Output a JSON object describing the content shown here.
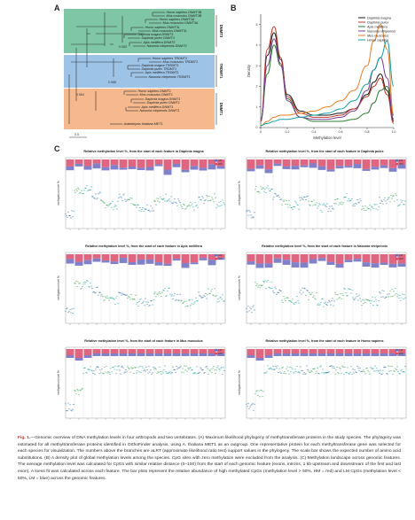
{
  "panels": {
    "a": "A",
    "b": "B",
    "c": "C"
  },
  "tree": {
    "groups": [
      {
        "label": "DNMT3",
        "color": "#7ec6a6"
      },
      {
        "label": "TRDMT1",
        "color": "#9dc3e6"
      },
      {
        "label": "DNMT1",
        "color": "#f6b98d"
      }
    ],
    "leaves": [
      "Homo sapiens DNMT3B",
      "Mus musculus DNMT3B",
      "Homo sapiens DNMT3A",
      "Mus musculus DNMT3A",
      "Homo sapiens DNMT3L",
      "Mus musculus DNMT3L",
      "Daphnia magna DNMT3",
      "Daphnia pulex DNMT3",
      "Apis mellifera DNMT3",
      "Nasonia vitripennis DNMT3",
      "Homo sapiens TRDMT1",
      "Mus musculus TRDMT1",
      "Daphnia magna TRDMT1",
      "Daphnia pulex TRDMT1",
      "Apis mellifera TRDMT1",
      "Nasonia vitripennis TRDMT1",
      "Homo sapiens DNMT1",
      "Mus musculus DNMT1",
      "Daphnia magna DNMT1",
      "Daphnia pulex DNMT1",
      "Apis mellifera DNMT1",
      "Nasonia vitripennis DNMT1",
      "Arabidopsis thaliana MET1"
    ],
    "support_values": [
      "0.983",
      "0.988",
      "0.964"
    ],
    "scale": "0.5"
  },
  "density": {
    "xlabel": "Methylation level",
    "ylabel": "Density",
    "xticks": [
      "0",
      "0.2",
      "0.4",
      "0.6",
      "0.8",
      "1.0"
    ],
    "yticks": [
      "0",
      "1",
      "2",
      "3",
      "4",
      "5"
    ],
    "legend": [
      {
        "name": "Daphnia magna",
        "color": "#1a1a1a"
      },
      {
        "name": "Daphnia pulex",
        "color": "#c0392b"
      },
      {
        "name": "Apis mellifera",
        "color": "#2e7d32"
      },
      {
        "name": "Nasonia vitripennis",
        "color": "#7b3f99"
      },
      {
        "name": "Mus musculus",
        "color": "#e67e22"
      },
      {
        "name": "Homo sapiens",
        "color": "#16a0a0"
      }
    ]
  },
  "chart_data": {
    "type": "line",
    "xlabel": "Methylation level",
    "ylabel": "Density",
    "xlim": [
      0,
      1
    ],
    "ylim": [
      0,
      5.5
    ],
    "x": [
      0.0,
      0.05,
      0.1,
      0.15,
      0.2,
      0.3,
      0.4,
      0.5,
      0.6,
      0.7,
      0.8,
      0.85,
      0.9,
      0.95,
      1.0
    ],
    "series": [
      {
        "name": "Daphnia magna",
        "values": [
          0.3,
          3.5,
          4.6,
          3.3,
          1.6,
          0.8,
          0.6,
          0.6,
          0.7,
          0.9,
          1.6,
          2.2,
          2.6,
          1.8,
          0.3
        ]
      },
      {
        "name": "Daphnia pulex",
        "values": [
          0.3,
          3.8,
          4.9,
          3.4,
          1.5,
          0.7,
          0.5,
          0.5,
          0.6,
          0.9,
          1.5,
          2.0,
          2.4,
          1.6,
          0.2
        ]
      },
      {
        "name": "Apis mellifera",
        "values": [
          0.4,
          2.6,
          4.0,
          3.0,
          1.4,
          0.5,
          0.3,
          0.3,
          0.3,
          0.4,
          0.7,
          1.2,
          1.8,
          2.0,
          0.6
        ]
      },
      {
        "name": "Nasonia vitripennis",
        "values": [
          0.4,
          3.0,
          4.3,
          3.1,
          1.3,
          0.5,
          0.4,
          0.4,
          0.5,
          0.8,
          1.8,
          2.8,
          3.4,
          2.4,
          0.4
        ]
      },
      {
        "name": "Mus musculus",
        "values": [
          0.1,
          0.3,
          0.5,
          0.6,
          0.6,
          0.7,
          0.8,
          1.0,
          1.3,
          1.8,
          3.0,
          4.2,
          5.0,
          3.8,
          0.6
        ]
      },
      {
        "name": "Homo sapiens",
        "values": [
          0.1,
          0.2,
          0.3,
          0.4,
          0.4,
          0.5,
          0.6,
          0.7,
          0.9,
          1.3,
          2.1,
          2.8,
          3.4,
          4.2,
          2.0
        ]
      }
    ]
  },
  "landscape": {
    "plot_titles": [
      "Relative methylation level %, from the start of each feature in Daphnia magna",
      "Relative methylation level %, from the start of each feature in Daphnia pulex",
      "Relative methylation level %, from the start of each feature in Apis mellifera",
      "Relative methylation level %, from the start of each feature in Nasonia vitripennis",
      "Relative methylation level %, from the start of each feature in Mus musculus",
      "Relative methylation level %, from the start of each feature in Homo sapiens"
    ],
    "ylabel": "methylation level %",
    "legend": [
      "LM",
      "HM"
    ],
    "colors": {
      "hm": "#d94a6a",
      "lm": "#6b6bbf",
      "points": [
        "#2a6db0",
        "#2e9e4a",
        "#c0392b",
        "#7b3f99",
        "#16a0a0"
      ]
    }
  },
  "caption": {
    "label": "Fig. 1.",
    "text": "—Genomic overview of DNA methylation levels in four arthropods and two vertebrates. (A) Maximum likelihood phylogeny of methyltransferase proteins in the study species. The phylogeny was estimated for all methyltransferase proteins identified in OrthoFinder analysis, using A. thaliana MET1 as an outgroup. One representative protein for each methyltransferase gene was selected for each species for visualization. The numbers above the branches are aLRT (approximate likelihood ratio test) support values in the phylogeny. The scale bar shows the expected number of amino acid substitutions. (B) A density plot of global methylation levels among the species. CpG sites with zero methylation were excluded from the analysis. (C) Methylation landscape across genomic features. The average methylation level was calculated for CpGs with similar relative distance (0–100) from the start of each genomic feature (exons, introns, 1 kb upstream and downstream of the first and last exon). A loess fit was calculated across each feature. The bar plots represent the relative abundance of high methylated CpGs (methylation level > 50%, HM = red) and LM CpGs (methylation level < 50%, LM = blue) across the genomic features."
  }
}
